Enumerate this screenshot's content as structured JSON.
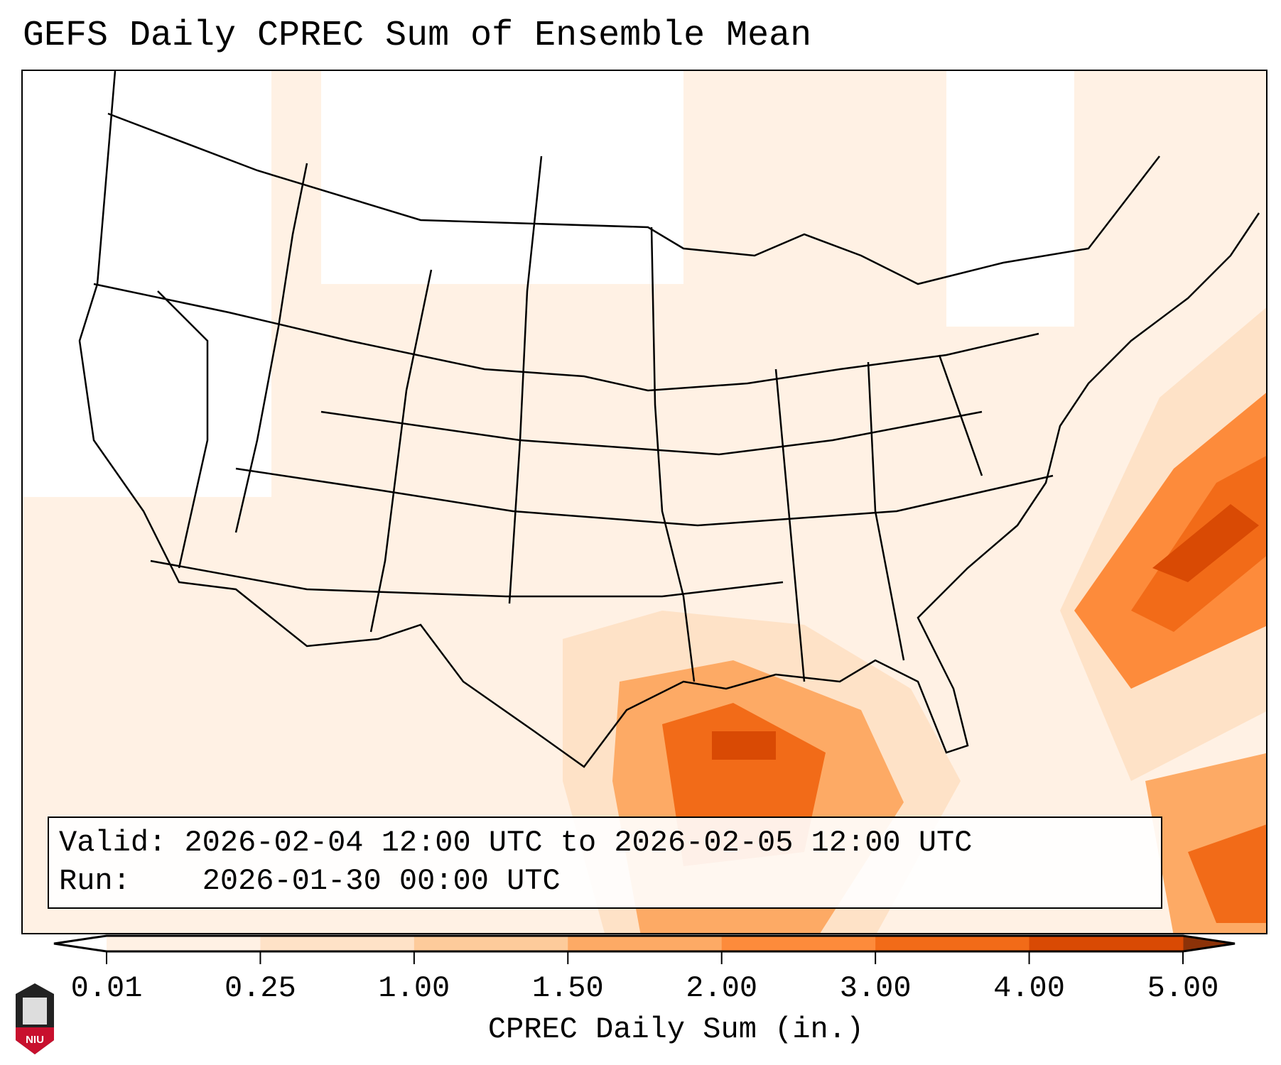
{
  "title": "GEFS Daily CPREC Sum of Ensemble Mean",
  "info": {
    "valid_label": "Valid:",
    "valid_value": "2026-02-04 12:00 UTC to 2026-02-05 12:00 UTC",
    "run_label": "Run:",
    "run_value": "2026-01-30 00:00 UTC"
  },
  "logo_text": "NIU",
  "chart_data": {
    "type": "heatmap",
    "title": "GEFS Daily CPREC Sum of Ensemble Mean",
    "colorbar_label": "CPREC Daily Sum (in.)",
    "levels": [
      "0.01",
      "0.25",
      "1.00",
      "1.50",
      "2.00",
      "3.00",
      "4.00",
      "5.00"
    ],
    "colors": [
      "#fff1e4",
      "#fee2c7",
      "#fdcb9b",
      "#fdaa65",
      "#fd8b3b",
      "#f26b18",
      "#d94a04"
    ],
    "extend_low_color": "#ffffff",
    "extend_high_color": "#8c3208",
    "regions": [
      {
        "name": "Gulf of Mexico / Texas coast",
        "max_value": 4.0
      },
      {
        "name": "Western Atlantic off Carolinas",
        "max_value": 4.5
      },
      {
        "name": "Bahamas / Caribbean",
        "max_value": 3.0
      },
      {
        "name": "Central and eastern US",
        "max_value": 0.25
      }
    ]
  }
}
